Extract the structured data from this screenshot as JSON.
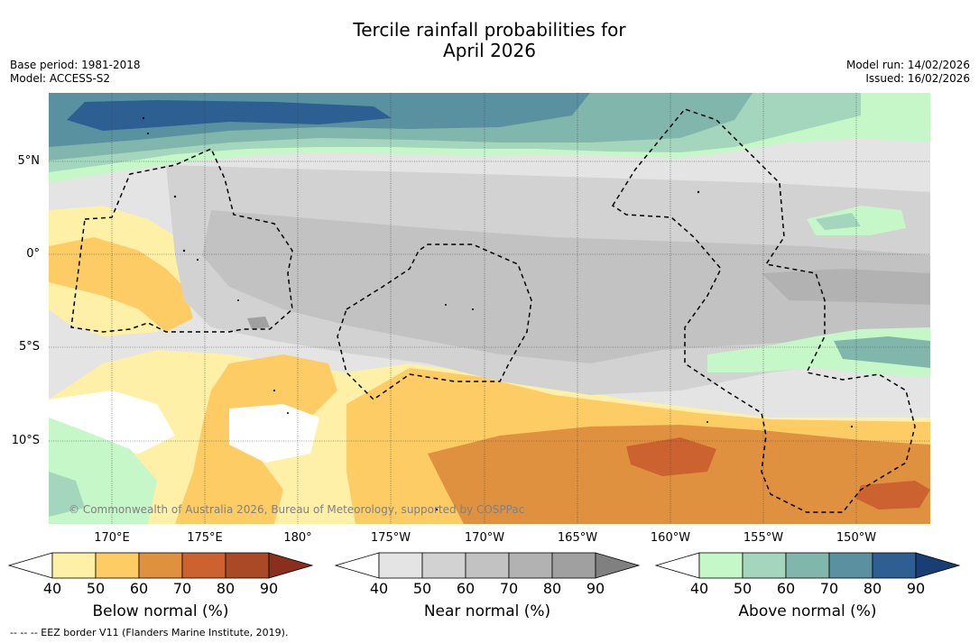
{
  "title_line1": "Tercile rainfall probabilities for",
  "title_line2": "April 2026",
  "left_meta": {
    "base_period": "Base period: 1981-2018",
    "model": "Model: ACCESS-S2"
  },
  "right_meta": {
    "model_run": "Model run: 14/02/2026",
    "issued": "Issued: 16/02/2026"
  },
  "lat_labels": [
    "5°N",
    "0°",
    "5°S",
    "10°S"
  ],
  "lon_labels": [
    "170°E",
    "175°E",
    "180°",
    "175°W",
    "170°W",
    "165°W",
    "160°W",
    "155°W",
    "150°W"
  ],
  "copyright": "© Commonwealth of Australia 2026, Bureau of Meteorology, supported by COSPPac",
  "footnote": "--  --  -- EEZ border V11 (Flanders Marine Institute, 2019).",
  "colorbars": [
    {
      "label": "Below normal (%)",
      "ticks": [
        "40",
        "50",
        "60",
        "70",
        "80",
        "90"
      ],
      "colors": [
        "#fff0a8",
        "#fdcc64",
        "#e0913f",
        "#cb6230",
        "#aa4a25",
        "#8a2e1e"
      ]
    },
    {
      "label": "Near normal (%)",
      "ticks": [
        "40",
        "50",
        "60",
        "70",
        "80",
        "90"
      ],
      "colors": [
        "#e4e4e4",
        "#d2d2d2",
        "#c2c2c2",
        "#b2b2b2",
        "#a0a0a0",
        "#808080"
      ]
    },
    {
      "label": "Above normal (%)",
      "ticks": [
        "40",
        "50",
        "60",
        "70",
        "80",
        "90"
      ],
      "colors": [
        "#c6f7c9",
        "#a3d6bd",
        "#80b6ab",
        "#5a91a0",
        "#2e5f93",
        "#193e74"
      ]
    }
  ]
}
